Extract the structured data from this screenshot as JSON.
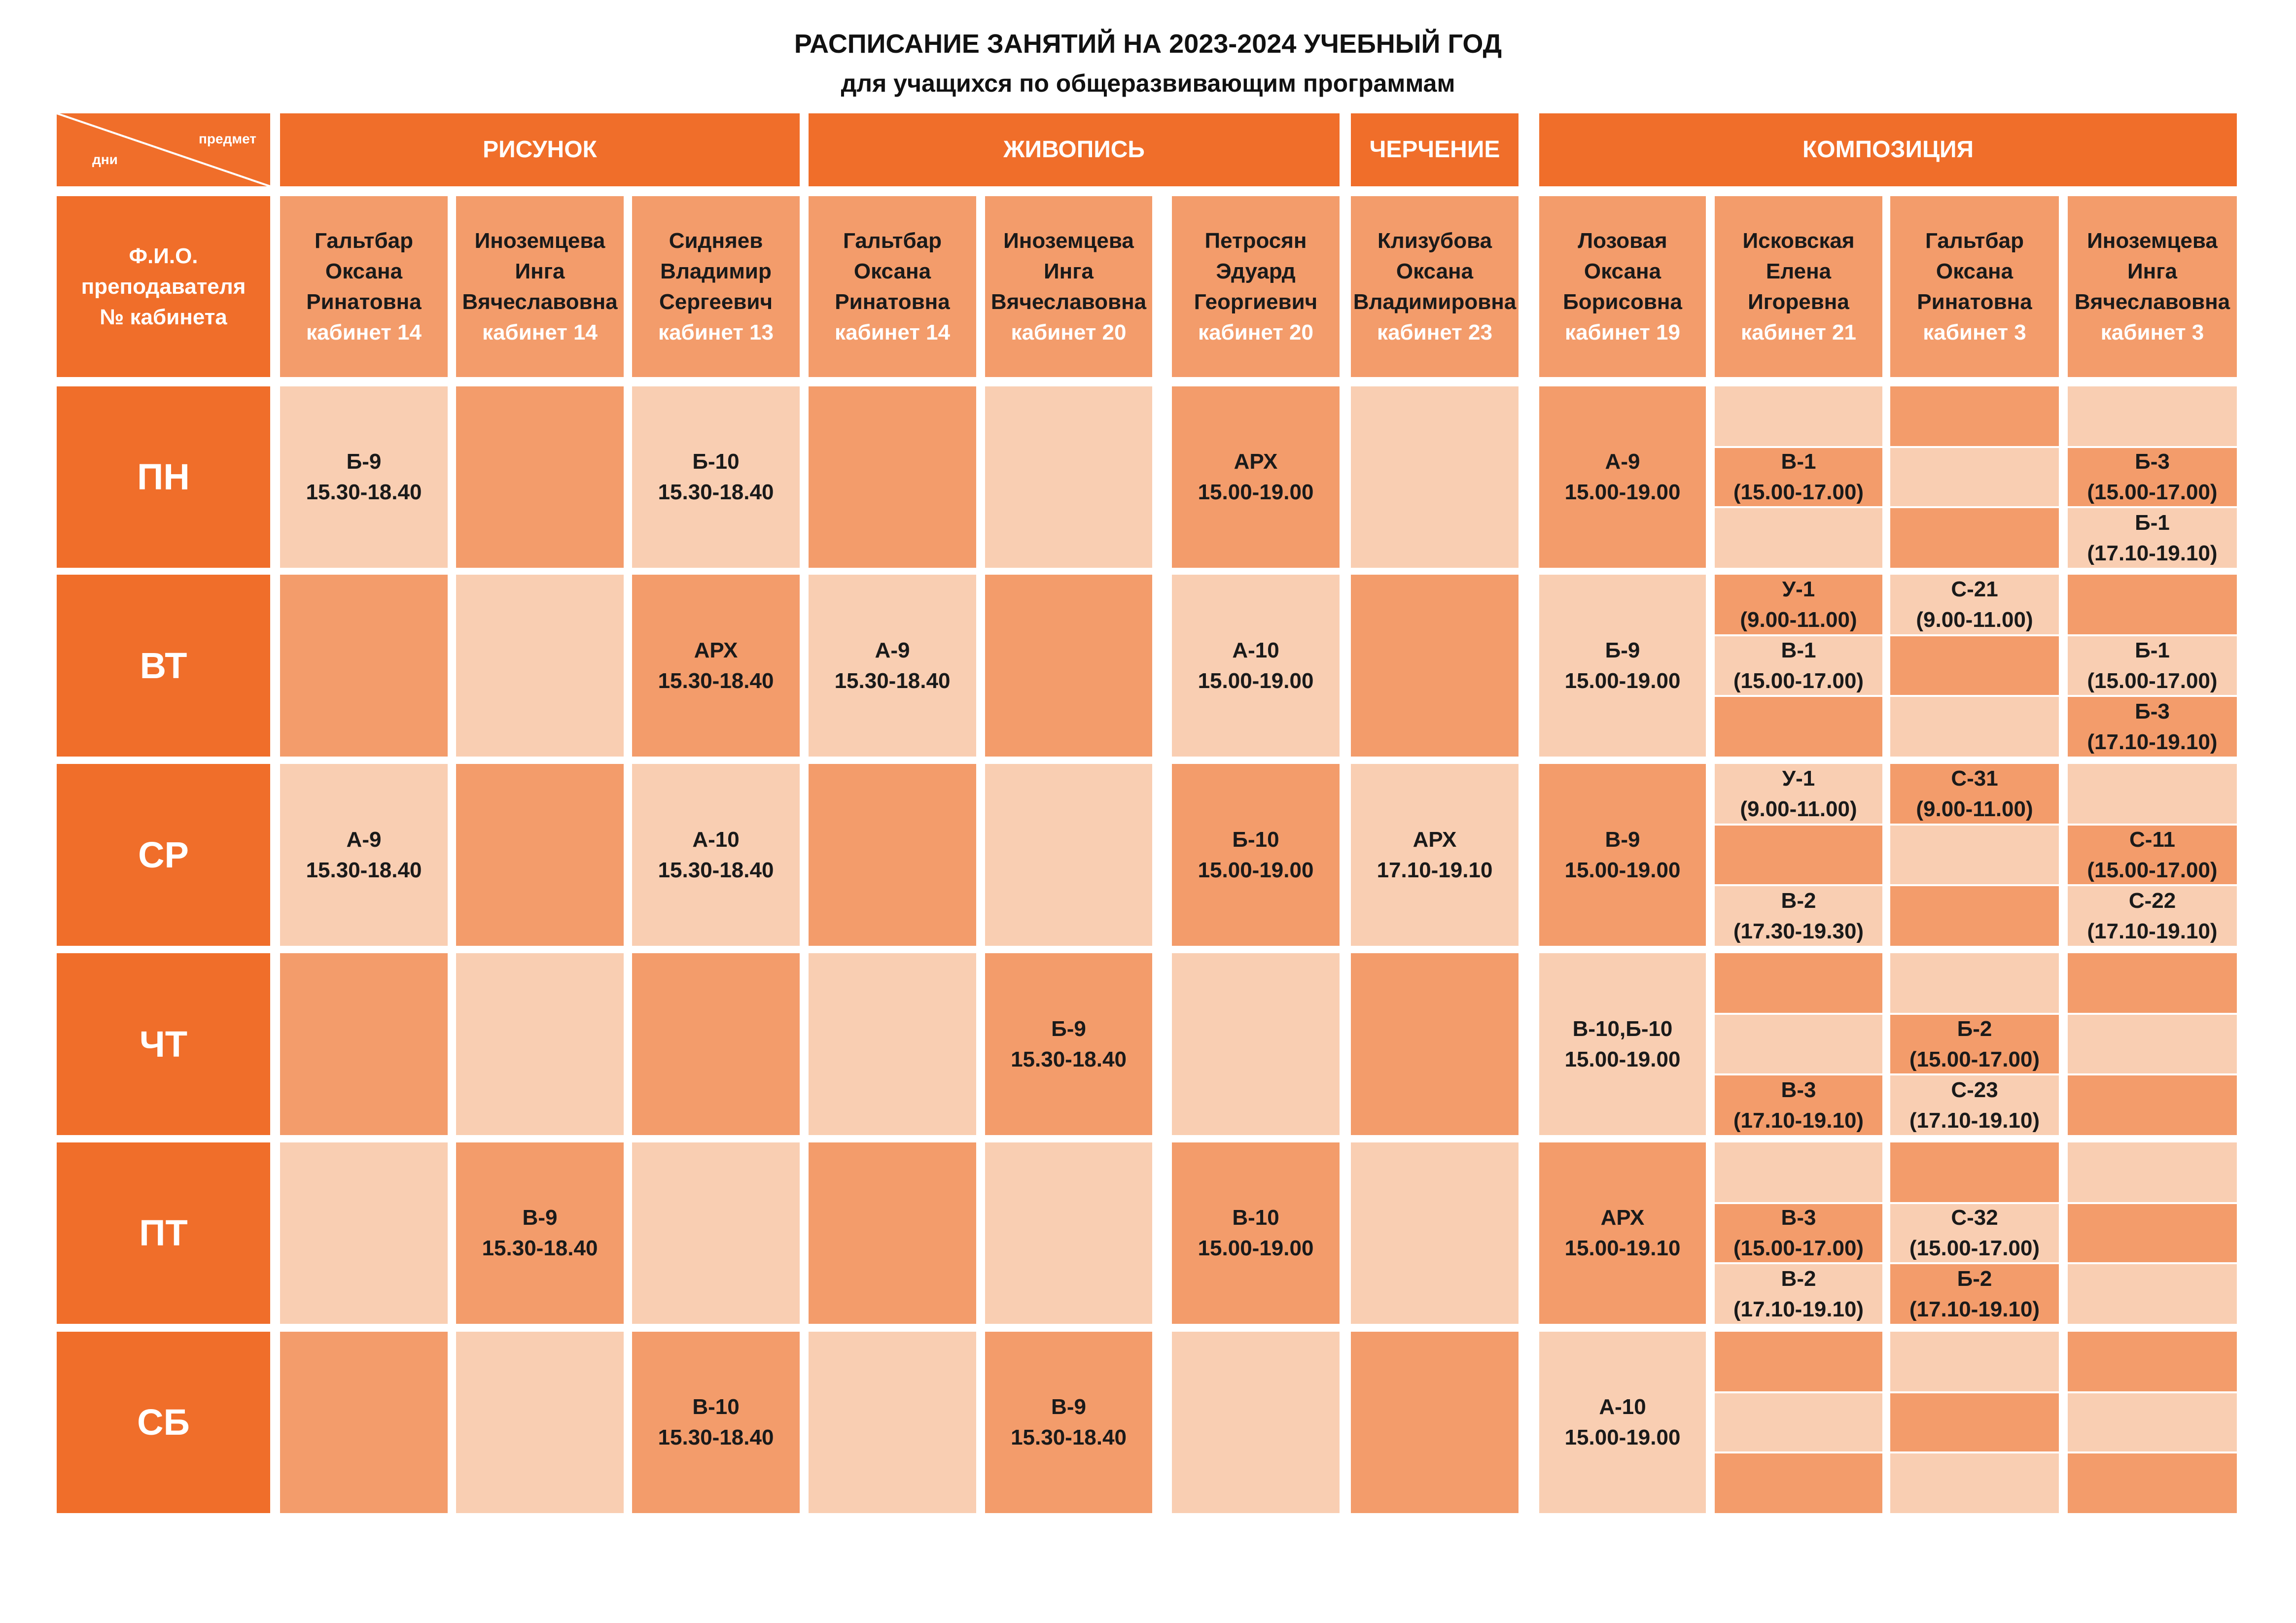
{
  "title": "РАСПИСАНИЕ ЗАНЯТИЙ НА 2023-2024 УЧЕБНЫЙ ГОД",
  "subtitle": "для учащихся по общеразвивающим программам",
  "corner": {
    "top": "предмет",
    "bottom": "дни"
  },
  "colors": {
    "dark": "#f06e2a",
    "mid": "#f39c6b",
    "light": "#f9ceb2"
  },
  "subjects": [
    "РИСУНОК",
    "ЖИВОПИСЬ",
    "ЧЕРЧЕНИЕ",
    "КОМПОЗИЦИЯ"
  ],
  "teacher_header": [
    "Ф.И.О.",
    "преподавателя",
    "№ кабинета"
  ],
  "teachers": [
    {
      "name": [
        "Гальтбар",
        "Оксана",
        "Ринатовна"
      ],
      "room": "кабинет 14"
    },
    {
      "name": [
        "Иноземцева",
        "Инга",
        "Вячеславовна"
      ],
      "room": "кабинет 14"
    },
    {
      "name": [
        "Сидняев",
        "Владимир",
        "Сергеевич"
      ],
      "room": "кабинет 13"
    },
    {
      "name": [
        "Гальтбар",
        "Оксана",
        "Ринатовна"
      ],
      "room": "кабинет 14"
    },
    {
      "name": [
        "Иноземцева",
        "Инга",
        "Вячеславовна"
      ],
      "room": "кабинет 20"
    },
    {
      "name": [
        "Петросян",
        "Эдуард",
        "Георгиевич"
      ],
      "room": "кабинет 20"
    },
    {
      "name": [
        "Клизубова",
        "Оксана",
        "Владимировна"
      ],
      "room": "кабинет 23"
    },
    {
      "name": [
        "Лозовая",
        "Оксана",
        "Борисовна"
      ],
      "room": "кабинет 19"
    },
    {
      "name": [
        "Исковская",
        "Елена",
        "Игоревна"
      ],
      "room": "кабинет 21"
    },
    {
      "name": [
        "Гальтбар",
        "Оксана",
        "Ринатовна"
      ],
      "room": "кабинет 3"
    },
    {
      "name": [
        "Иноземцева",
        "Инга",
        "Вячеславовна"
      ],
      "room": "кабинет 3"
    }
  ],
  "days": [
    "ПН",
    "ВТ",
    "СР",
    "ЧТ",
    "ПТ",
    "СБ"
  ],
  "schedule": [
    {
      "main": [
        {
          "shade": "light",
          "lines": [
            "Б-9",
            "15.30-18.40"
          ]
        },
        {
          "shade": "mid",
          "lines": []
        },
        {
          "shade": "light",
          "lines": [
            "Б-10",
            "15.30-18.40"
          ]
        },
        {
          "shade": "mid",
          "lines": []
        },
        {
          "shade": "light",
          "lines": []
        },
        {
          "shade": "mid",
          "lines": [
            "АРХ",
            "15.00-19.00"
          ]
        },
        {
          "shade": "light",
          "lines": []
        },
        {
          "shade": "mid",
          "lines": [
            "А-9",
            "15.00-19.00"
          ]
        }
      ],
      "sub": [
        [
          {
            "shade": "light",
            "lines": []
          },
          {
            "shade": "mid",
            "lines": [
              "В-1",
              "(15.00-17.00)"
            ]
          },
          {
            "shade": "light",
            "lines": []
          }
        ],
        [
          {
            "shade": "mid",
            "lines": []
          },
          {
            "shade": "light",
            "lines": []
          },
          {
            "shade": "mid",
            "lines": []
          }
        ],
        [
          {
            "shade": "light",
            "lines": []
          },
          {
            "shade": "mid",
            "lines": [
              "Б-3",
              "(15.00-17.00)"
            ]
          },
          {
            "shade": "light",
            "lines": [
              "Б-1",
              "(17.10-19.10)"
            ]
          }
        ]
      ]
    },
    {
      "main": [
        {
          "shade": "mid",
          "lines": []
        },
        {
          "shade": "light",
          "lines": []
        },
        {
          "shade": "mid",
          "lines": [
            "АРХ",
            "15.30-18.40"
          ]
        },
        {
          "shade": "light",
          "lines": [
            "А-9",
            "15.30-18.40"
          ]
        },
        {
          "shade": "mid",
          "lines": []
        },
        {
          "shade": "light",
          "lines": [
            "А-10",
            "15.00-19.00"
          ]
        },
        {
          "shade": "mid",
          "lines": []
        },
        {
          "shade": "light",
          "lines": [
            "Б-9",
            "15.00-19.00"
          ]
        }
      ],
      "sub": [
        [
          {
            "shade": "mid",
            "lines": [
              "У-1",
              "(9.00-11.00)"
            ]
          },
          {
            "shade": "light",
            "lines": [
              "В-1",
              "(15.00-17.00)"
            ]
          },
          {
            "shade": "mid",
            "lines": []
          }
        ],
        [
          {
            "shade": "light",
            "lines": [
              "С-21",
              "(9.00-11.00)"
            ]
          },
          {
            "shade": "mid",
            "lines": []
          },
          {
            "shade": "light",
            "lines": []
          }
        ],
        [
          {
            "shade": "mid",
            "lines": []
          },
          {
            "shade": "light",
            "lines": [
              "Б-1",
              "(15.00-17.00)"
            ]
          },
          {
            "shade": "mid",
            "lines": [
              "Б-3",
              "(17.10-19.10)"
            ]
          }
        ]
      ]
    },
    {
      "main": [
        {
          "shade": "light",
          "lines": [
            "А-9",
            "15.30-18.40"
          ]
        },
        {
          "shade": "mid",
          "lines": []
        },
        {
          "shade": "light",
          "lines": [
            "А-10",
            "15.30-18.40"
          ]
        },
        {
          "shade": "mid",
          "lines": []
        },
        {
          "shade": "light",
          "lines": []
        },
        {
          "shade": "mid",
          "lines": [
            "Б-10",
            "15.00-19.00"
          ]
        },
        {
          "shade": "light",
          "lines": [
            "АРХ",
            "17.10-19.10"
          ]
        },
        {
          "shade": "mid",
          "lines": [
            "В-9",
            "15.00-19.00"
          ]
        }
      ],
      "sub": [
        [
          {
            "shade": "light",
            "lines": [
              "У-1",
              "(9.00-11.00)"
            ]
          },
          {
            "shade": "mid",
            "lines": []
          },
          {
            "shade": "light",
            "lines": [
              "В-2",
              "(17.30-19.30)"
            ]
          }
        ],
        [
          {
            "shade": "mid",
            "lines": [
              "С-31",
              "(9.00-11.00)"
            ]
          },
          {
            "shade": "light",
            "lines": []
          },
          {
            "shade": "mid",
            "lines": []
          }
        ],
        [
          {
            "shade": "light",
            "lines": []
          },
          {
            "shade": "mid",
            "lines": [
              "С-11",
              "(15.00-17.00)"
            ]
          },
          {
            "shade": "light",
            "lines": [
              "С-22",
              "(17.10-19.10)"
            ]
          }
        ]
      ]
    },
    {
      "main": [
        {
          "shade": "mid",
          "lines": []
        },
        {
          "shade": "light",
          "lines": []
        },
        {
          "shade": "mid",
          "lines": []
        },
        {
          "shade": "light",
          "lines": []
        },
        {
          "shade": "mid",
          "lines": [
            "Б-9",
            "15.30-18.40"
          ]
        },
        {
          "shade": "light",
          "lines": []
        },
        {
          "shade": "mid",
          "lines": []
        },
        {
          "shade": "light",
          "lines": [
            "В-10,Б-10",
            "15.00-19.00"
          ]
        }
      ],
      "sub": [
        [
          {
            "shade": "mid",
            "lines": []
          },
          {
            "shade": "light",
            "lines": []
          },
          {
            "shade": "mid",
            "lines": [
              "В-3",
              "(17.10-19.10)"
            ]
          }
        ],
        [
          {
            "shade": "light",
            "lines": []
          },
          {
            "shade": "mid",
            "lines": [
              "Б-2",
              "(15.00-17.00)"
            ]
          },
          {
            "shade": "light",
            "lines": [
              "С-23",
              "(17.10-19.10)"
            ]
          }
        ],
        [
          {
            "shade": "mid",
            "lines": []
          },
          {
            "shade": "light",
            "lines": []
          },
          {
            "shade": "mid",
            "lines": []
          }
        ]
      ]
    },
    {
      "main": [
        {
          "shade": "light",
          "lines": []
        },
        {
          "shade": "mid",
          "lines": [
            "В-9",
            "15.30-18.40"
          ]
        },
        {
          "shade": "light",
          "lines": []
        },
        {
          "shade": "mid",
          "lines": []
        },
        {
          "shade": "light",
          "lines": []
        },
        {
          "shade": "mid",
          "lines": [
            "В-10",
            "15.00-19.00"
          ]
        },
        {
          "shade": "light",
          "lines": []
        },
        {
          "shade": "mid",
          "lines": [
            "АРХ",
            "15.00-19.10"
          ]
        }
      ],
      "sub": [
        [
          {
            "shade": "light",
            "lines": []
          },
          {
            "shade": "mid",
            "lines": [
              "В-3",
              "(15.00-17.00)"
            ]
          },
          {
            "shade": "light",
            "lines": [
              "В-2",
              "(17.10-19.10)"
            ]
          }
        ],
        [
          {
            "shade": "mid",
            "lines": []
          },
          {
            "shade": "light",
            "lines": [
              "С-32",
              "(15.00-17.00)"
            ]
          },
          {
            "shade": "mid",
            "lines": [
              "Б-2",
              "(17.10-19.10)"
            ]
          }
        ],
        [
          {
            "shade": "light",
            "lines": []
          },
          {
            "shade": "mid",
            "lines": []
          },
          {
            "shade": "light",
            "lines": []
          }
        ]
      ]
    },
    {
      "main": [
        {
          "shade": "mid",
          "lines": []
        },
        {
          "shade": "light",
          "lines": []
        },
        {
          "shade": "mid",
          "lines": [
            "В-10",
            "15.30-18.40"
          ]
        },
        {
          "shade": "light",
          "lines": []
        },
        {
          "shade": "mid",
          "lines": [
            "В-9",
            "15.30-18.40"
          ]
        },
        {
          "shade": "light",
          "lines": []
        },
        {
          "shade": "mid",
          "lines": []
        },
        {
          "shade": "light",
          "lines": [
            "А-10",
            "15.00-19.00"
          ]
        }
      ],
      "sub": [
        [
          {
            "shade": "mid",
            "lines": []
          },
          {
            "shade": "light",
            "lines": []
          },
          {
            "shade": "mid",
            "lines": []
          }
        ],
        [
          {
            "shade": "light",
            "lines": []
          },
          {
            "shade": "mid",
            "lines": []
          },
          {
            "shade": "light",
            "lines": []
          }
        ],
        [
          {
            "shade": "mid",
            "lines": []
          },
          {
            "shade": "light",
            "lines": []
          },
          {
            "shade": "mid",
            "lines": []
          }
        ]
      ]
    }
  ]
}
